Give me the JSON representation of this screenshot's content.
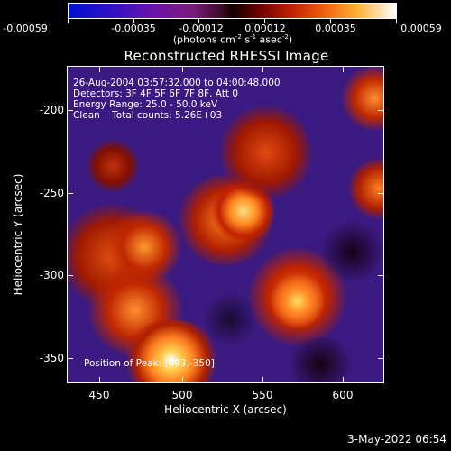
{
  "colorbar": {
    "tick_labels": [
      "-0.00059",
      "-0.00035",
      "-0.00012",
      "0.00012",
      "0.00035",
      "0.00059"
    ],
    "unit_prefix": "(photons cm",
    "unit_exp1": "-2",
    "unit_mid": " s",
    "unit_exp2": "-1",
    "unit_mid2": " asec",
    "unit_exp3": "-2",
    "unit_suffix": ")"
  },
  "title": "Reconstructed RHESSI Image",
  "annotation": "26-Aug-2004 03:57:32.000 to 04:00:48.000\nDetectors: 3F 4F 5F 6F 7F 8F, Att 0\nEnergy Range: 25.0 - 50.0 keV\nClean    Total counts: 5.26E+03",
  "peak_label": "Position of Peak: [493,-350]",
  "axes": {
    "xlabel": "Heliocentric X (arcsec)",
    "ylabel": "Heliocentric Y (arcsec)",
    "xticks": [
      "450",
      "500",
      "550",
      "600"
    ],
    "yticks": [
      "-200",
      "-250",
      "-300",
      "-350"
    ]
  },
  "datestamp": "3-May-2022 06:54"
}
